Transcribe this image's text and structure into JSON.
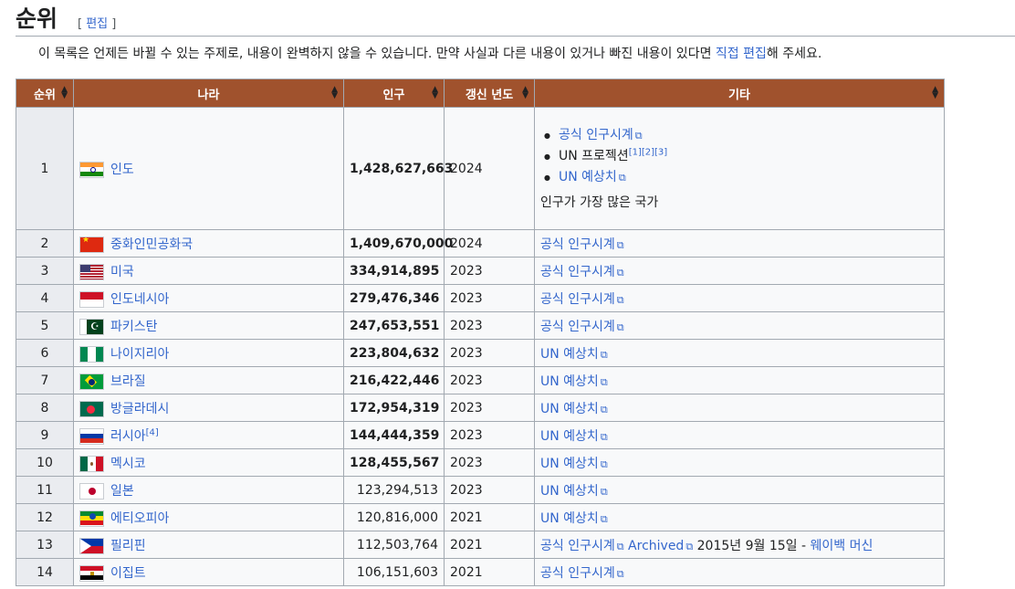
{
  "section": {
    "title": "순위",
    "edit_bracket_open": "[",
    "edit_label": "편집",
    "edit_bracket_close": "]"
  },
  "notice": {
    "text": "이 목록은 언제든 바뀔 수 있는 주제로, 내용이 완벽하지 않을 수 있습니다. 만약 사실과 다른 내용이 있거나 빠진 내용이 있다면 ",
    "link": "직접 편집",
    "suffix": "해 주세요."
  },
  "table": {
    "headers": [
      "순위",
      "나라",
      "인구",
      "갱신 년도",
      "기타"
    ],
    "header_color": "#a0522d",
    "first_row_other": {
      "items": [
        "공식 인구시계",
        "UN 프로젝션",
        "UN 예상치"
      ],
      "refs": "[1][2][3]",
      "note": "인구가 가장 많은 국가"
    },
    "rows": [
      {
        "rank": "1",
        "country": "인도",
        "flag": "india-flag",
        "pop": "1,428,627,663",
        "year": "2024",
        "bold": true
      },
      {
        "rank": "2",
        "country": "중화인민공화국",
        "flag": "china-flag",
        "pop": "1,409,670,000",
        "year": "2024",
        "bold": true,
        "other": "공식 인구시계"
      },
      {
        "rank": "3",
        "country": "미국",
        "flag": "usa-flag",
        "pop": "334,914,895",
        "year": "2023",
        "bold": true,
        "other": "공식 인구시계"
      },
      {
        "rank": "4",
        "country": "인도네시아",
        "flag": "indonesia-flag",
        "pop": "279,476,346",
        "year": "2023",
        "bold": true,
        "other": "공식 인구시계"
      },
      {
        "rank": "5",
        "country": "파키스탄",
        "flag": "pakistan-flag",
        "pop": "247,653,551",
        "year": "2023",
        "bold": true,
        "other": "공식 인구시계"
      },
      {
        "rank": "6",
        "country": "나이지리아",
        "flag": "nigeria-flag",
        "pop": "223,804,632",
        "year": "2023",
        "bold": true,
        "other": "UN 예상치"
      },
      {
        "rank": "7",
        "country": "브라질",
        "flag": "brazil-flag",
        "pop": "216,422,446",
        "year": "2023",
        "bold": true,
        "other": "UN 예상치"
      },
      {
        "rank": "8",
        "country": "방글라데시",
        "flag": "bangladesh-flag",
        "pop": "172,954,319",
        "year": "2023",
        "bold": true,
        "other": "UN 예상치"
      },
      {
        "rank": "9",
        "country": "러시아",
        "sup": "[4]",
        "flag": "russia-flag",
        "pop": "144,444,359",
        "year": "2023",
        "bold": true,
        "other": "UN 예상치"
      },
      {
        "rank": "10",
        "country": "멕시코",
        "flag": "mexico-flag",
        "pop": "128,455,567",
        "year": "2023",
        "bold": true,
        "other": "UN 예상치"
      },
      {
        "rank": "11",
        "country": "일본",
        "flag": "japan-flag",
        "pop": "123,294,513",
        "year": "2023",
        "bold": false,
        "other": "UN 예상치"
      },
      {
        "rank": "12",
        "country": "에티오피아",
        "flag": "ethiopia-flag",
        "pop": "120,816,000",
        "year": "2021",
        "bold": false,
        "other": "UN 예상치"
      },
      {
        "rank": "13",
        "country": "필리핀",
        "flag": "philippines-flag",
        "pop": "112,503,764",
        "year": "2021",
        "bold": false,
        "other": "공식 인구시계",
        "archived": "Archived",
        "archived_date": " 2015년 9월 15일 - ",
        "wayback": "웨이백 머신"
      },
      {
        "rank": "14",
        "country": "이집트",
        "flag": "egypt-flag",
        "pop": "106,151,603",
        "year": "2021",
        "bold": false,
        "other": "공식 인구시계"
      }
    ]
  }
}
